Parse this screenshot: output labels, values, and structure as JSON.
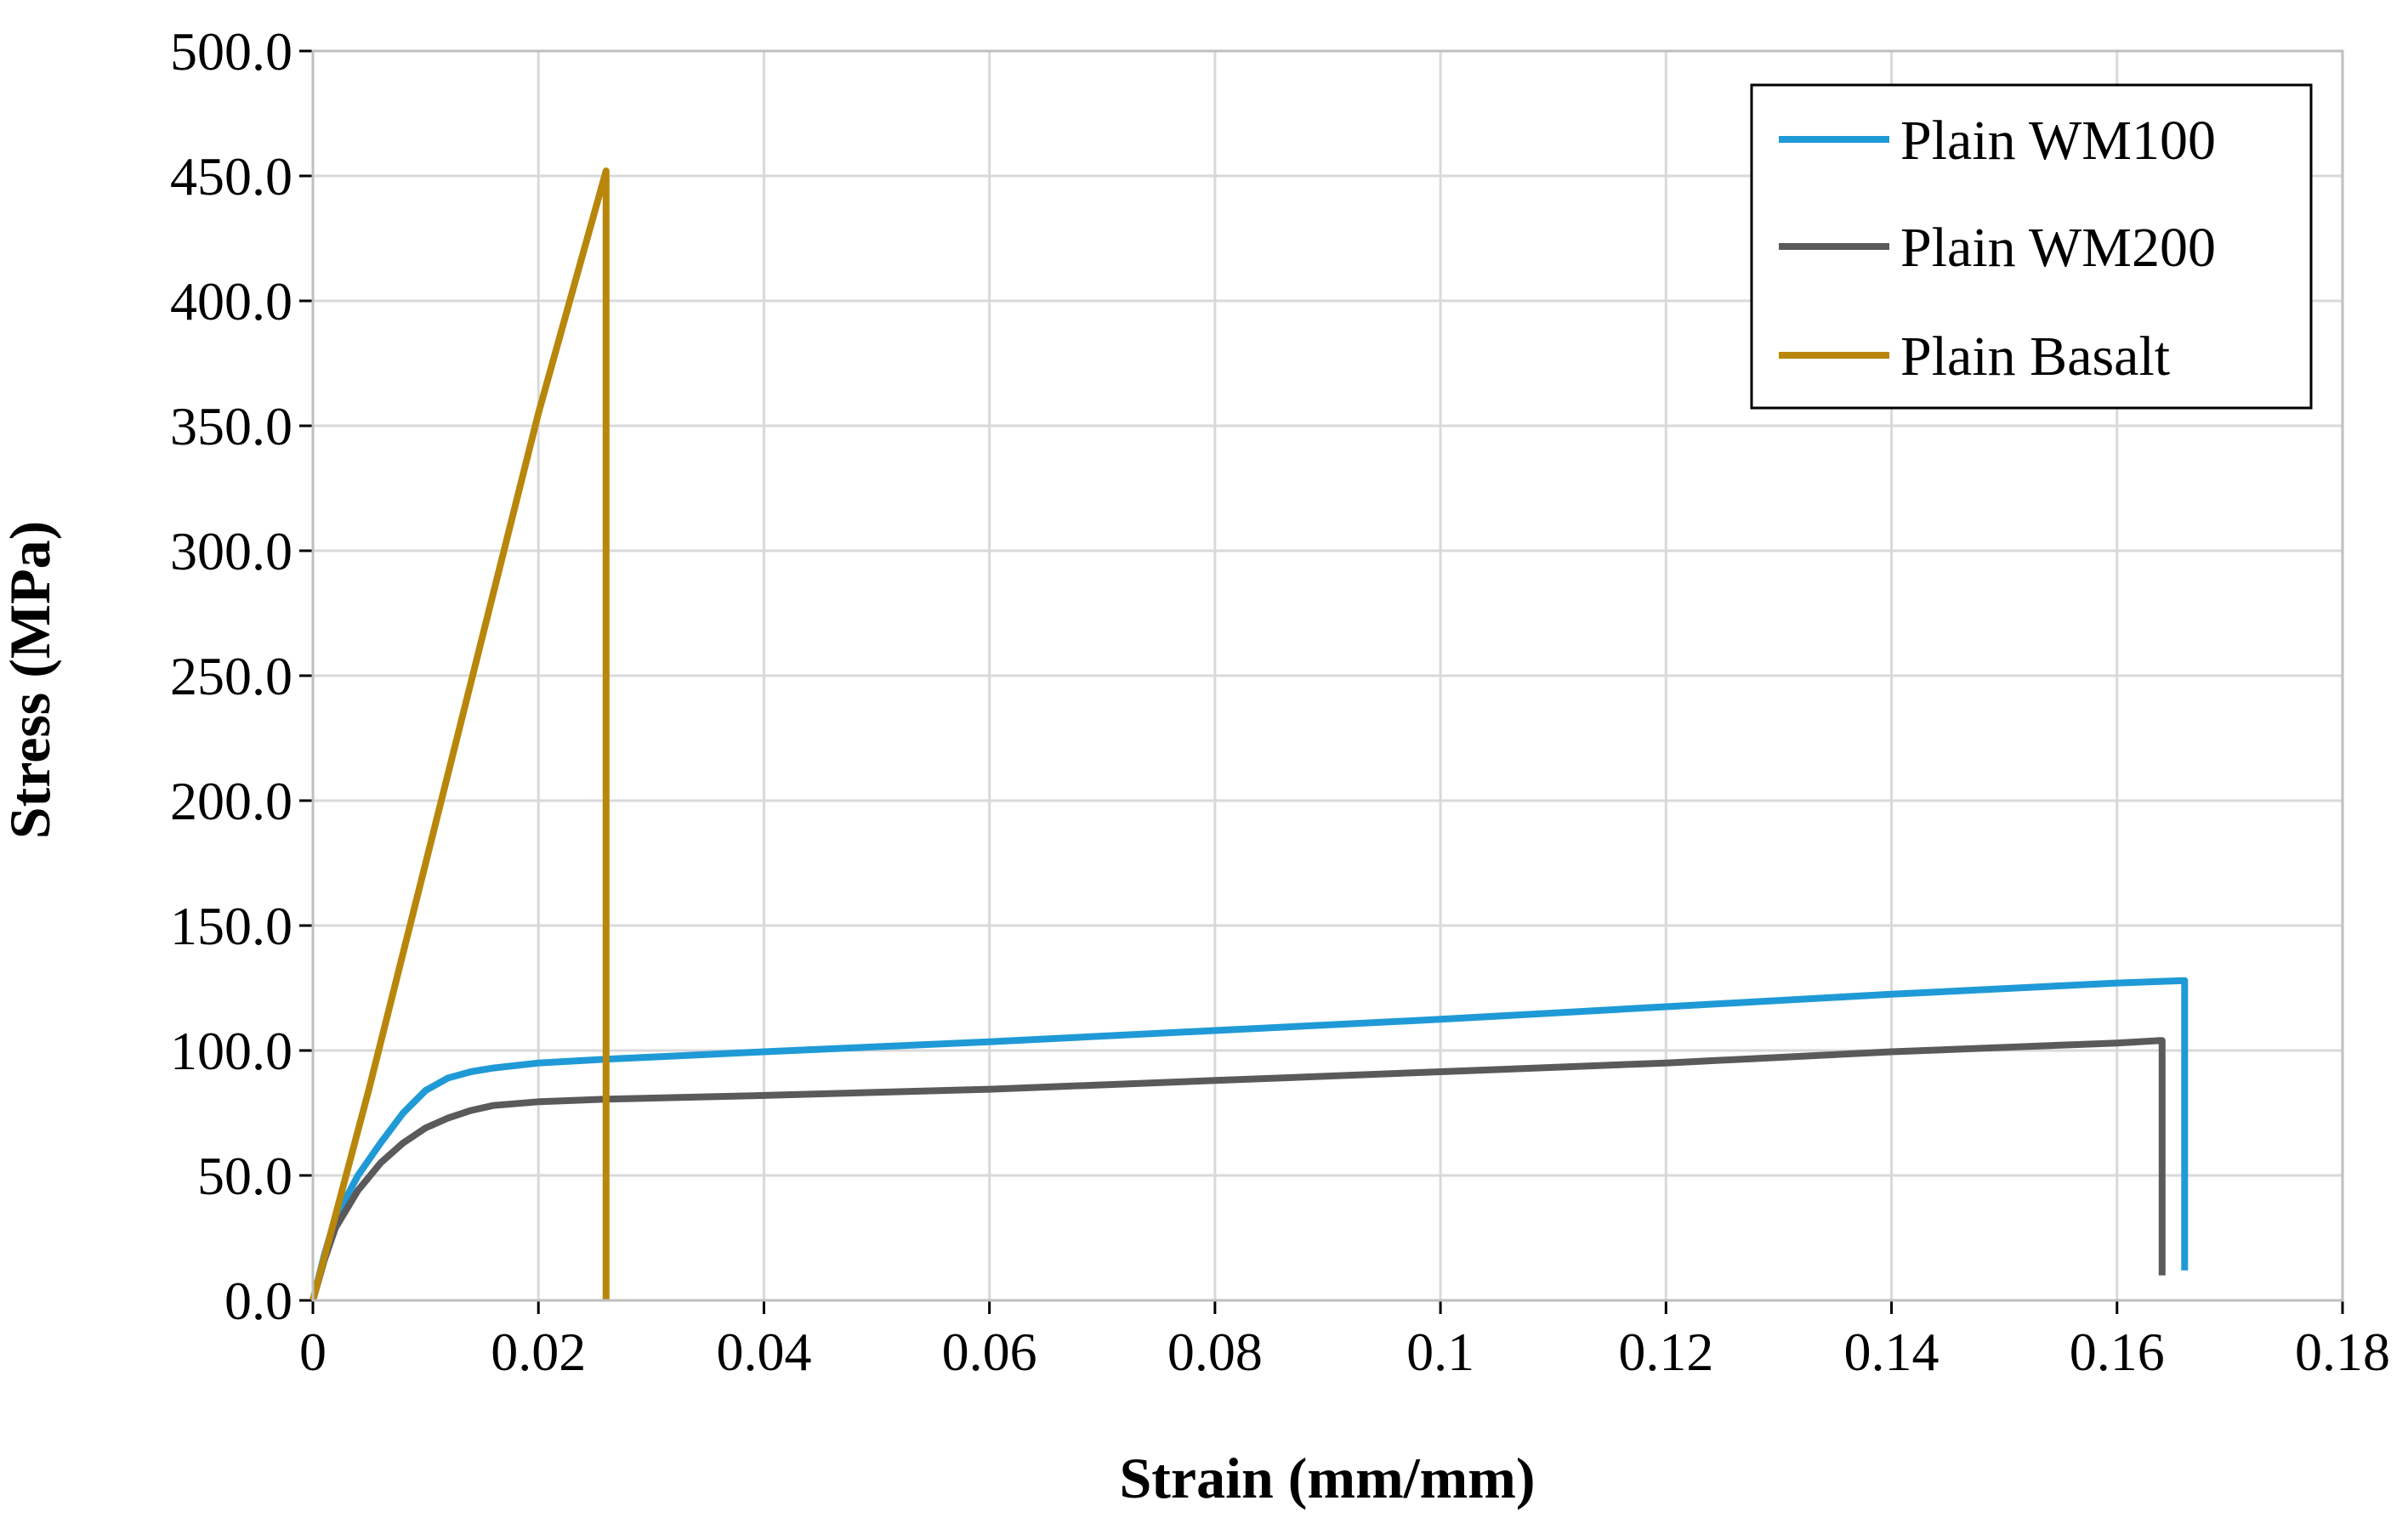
{
  "chart_data": {
    "type": "line",
    "title": "",
    "xlabel": "Strain (mm/mm)",
    "ylabel": "Stress (MPa)",
    "xlim": [
      0,
      0.18
    ],
    "ylim": [
      0,
      500
    ],
    "xticks": [
      0,
      0.02,
      0.04,
      0.06,
      0.08,
      0.1,
      0.12,
      0.14,
      0.16,
      0.18
    ],
    "xtick_labels": [
      "0",
      "0.02",
      "0.04",
      "0.06",
      "0.08",
      "0.1",
      "0.12",
      "0.14",
      "0.16",
      "0.18"
    ],
    "yticks": [
      0,
      50,
      100,
      150,
      200,
      250,
      300,
      350,
      400,
      450,
      500
    ],
    "ytick_labels": [
      "0.0",
      "50.0",
      "100.0",
      "150.0",
      "200.0",
      "250.0",
      "300.0",
      "350.0",
      "400.0",
      "450.0",
      "500.0"
    ],
    "grid": true,
    "legend_position": "top-right",
    "series": [
      {
        "name": "Plain WM100",
        "color": "#1f9ad6",
        "points": [
          [
            0,
            0
          ],
          [
            0.001,
            18
          ],
          [
            0.002,
            33
          ],
          [
            0.004,
            50
          ],
          [
            0.006,
            63
          ],
          [
            0.008,
            75
          ],
          [
            0.01,
            84
          ],
          [
            0.012,
            89
          ],
          [
            0.014,
            91.5
          ],
          [
            0.016,
            93
          ],
          [
            0.02,
            95
          ],
          [
            0.026,
            96.5
          ],
          [
            0.04,
            99.5
          ],
          [
            0.06,
            103.5
          ],
          [
            0.08,
            108
          ],
          [
            0.1,
            112.5
          ],
          [
            0.12,
            117.5
          ],
          [
            0.14,
            122.5
          ],
          [
            0.16,
            127
          ],
          [
            0.166,
            128
          ],
          [
            0.166,
            12
          ]
        ]
      },
      {
        "name": "Plain WM200",
        "color": "#5a5a5a",
        "points": [
          [
            0,
            0
          ],
          [
            0.001,
            16
          ],
          [
            0.002,
            29
          ],
          [
            0.004,
            44
          ],
          [
            0.006,
            55
          ],
          [
            0.008,
            63
          ],
          [
            0.01,
            69
          ],
          [
            0.012,
            73
          ],
          [
            0.014,
            76
          ],
          [
            0.016,
            78
          ],
          [
            0.02,
            79.5
          ],
          [
            0.026,
            80.5
          ],
          [
            0.04,
            82
          ],
          [
            0.06,
            84.5
          ],
          [
            0.08,
            88
          ],
          [
            0.1,
            91.5
          ],
          [
            0.12,
            95
          ],
          [
            0.14,
            99.5
          ],
          [
            0.16,
            103
          ],
          [
            0.164,
            104
          ],
          [
            0.164,
            10
          ]
        ]
      },
      {
        "name": "Plain Basalt",
        "color": "#b8860b",
        "points": [
          [
            0,
            0
          ],
          [
            0.005,
            85
          ],
          [
            0.01,
            175
          ],
          [
            0.015,
            265
          ],
          [
            0.02,
            355
          ],
          [
            0.026,
            452
          ],
          [
            0.026,
            0
          ]
        ]
      }
    ]
  }
}
